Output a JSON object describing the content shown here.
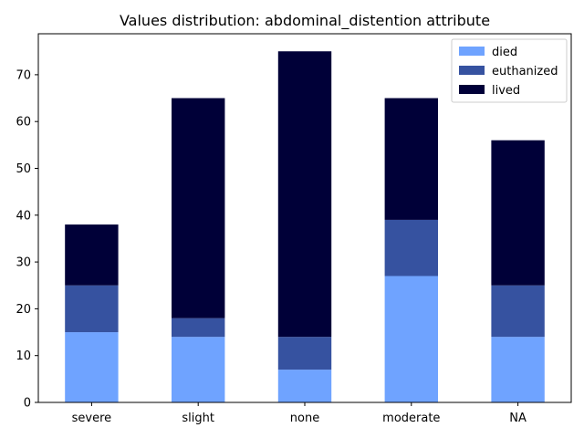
{
  "chart_data": {
    "type": "bar",
    "stacked": true,
    "title": "Values distribution: abdominal_distention attribute",
    "xlabel": "",
    "ylabel": "",
    "categories": [
      "severe",
      "slight",
      "none",
      "moderate",
      "NA"
    ],
    "series": [
      {
        "name": "died",
        "color": "#6fa3ff",
        "values": [
          15,
          14,
          7,
          27,
          14
        ]
      },
      {
        "name": "euthanized",
        "color": "#3652a0",
        "values": [
          10,
          4,
          7,
          12,
          11
        ]
      },
      {
        "name": "lived",
        "color": "#000038",
        "values": [
          13,
          47,
          61,
          26,
          31
        ]
      }
    ],
    "ylim": [
      0,
      78.75
    ],
    "yticks": [
      0,
      10,
      20,
      30,
      40,
      50,
      60,
      70
    ],
    "grid": false,
    "legend_position": "top-right"
  }
}
